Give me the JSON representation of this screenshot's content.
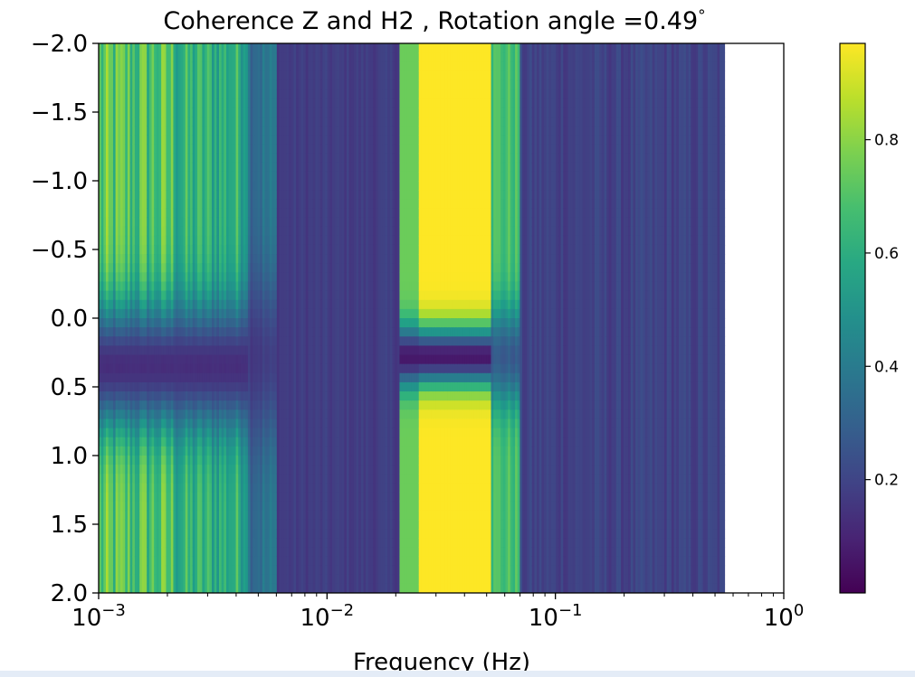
{
  "chart_data": {
    "type": "heatmap",
    "title": "Coherence Z and H2 , Rotation angle =0.49",
    "title_unit": "°",
    "xlabel": "Frequency (Hz)",
    "ylabel": "",
    "x_scale": "log",
    "xlim": [
      0.001,
      1.0
    ],
    "ylim": [
      2.0,
      -2.0
    ],
    "x_ticks": [
      {
        "value": 0.001,
        "base": "10",
        "exp": "−3"
      },
      {
        "value": 0.01,
        "base": "10",
        "exp": "−2"
      },
      {
        "value": 0.1,
        "base": "10",
        "exp": "−1"
      },
      {
        "value": 1.0,
        "base": "10",
        "exp": "0"
      }
    ],
    "y_ticks": [
      {
        "value": -2.0,
        "label": "−2.0"
      },
      {
        "value": -1.5,
        "label": "−1.5"
      },
      {
        "value": -1.0,
        "label": "−1.0"
      },
      {
        "value": -0.5,
        "label": "−0.5"
      },
      {
        "value": 0.0,
        "label": "0.0"
      },
      {
        "value": 0.5,
        "label": "0.5"
      },
      {
        "value": 1.0,
        "label": "1.0"
      },
      {
        "value": 1.5,
        "label": "1.5"
      },
      {
        "value": 2.0,
        "label": "2.0"
      }
    ],
    "data_x_max": 0.55,
    "colorbar": {
      "colormap": "viridis",
      "range": [
        0.0,
        0.97
      ],
      "ticks": [
        {
          "value": 0.2,
          "label": "0.2"
        },
        {
          "value": 0.4,
          "label": "0.4"
        },
        {
          "value": 0.6,
          "label": "0.6"
        },
        {
          "value": 0.8,
          "label": "0.8"
        }
      ]
    },
    "regions": [
      {
        "freq_range": [
          0.001,
          0.0045
        ],
        "coherence_outer": 0.85,
        "coherence_center": 0.1,
        "description_band": "broad low-frequency band, high at |y|>0.5, low near y≈0.3"
      },
      {
        "freq_range": [
          0.0045,
          0.02
        ],
        "coherence_outer": 0.15,
        "coherence_center": 0.1
      },
      {
        "freq_range": [
          0.022,
          0.05
        ],
        "coherence_outer": 0.97,
        "coherence_center": 0.05
      },
      {
        "freq_range": [
          0.05,
          0.07
        ],
        "coherence_outer": 0.6,
        "coherence_center": 0.3
      },
      {
        "freq_range": [
          0.07,
          0.55
        ],
        "coherence_outer": 0.12,
        "coherence_center": 0.1
      }
    ]
  },
  "colors": {
    "viridis_low": "#440154",
    "viridis_mid": "#21918c",
    "viridis_high": "#fde725"
  }
}
